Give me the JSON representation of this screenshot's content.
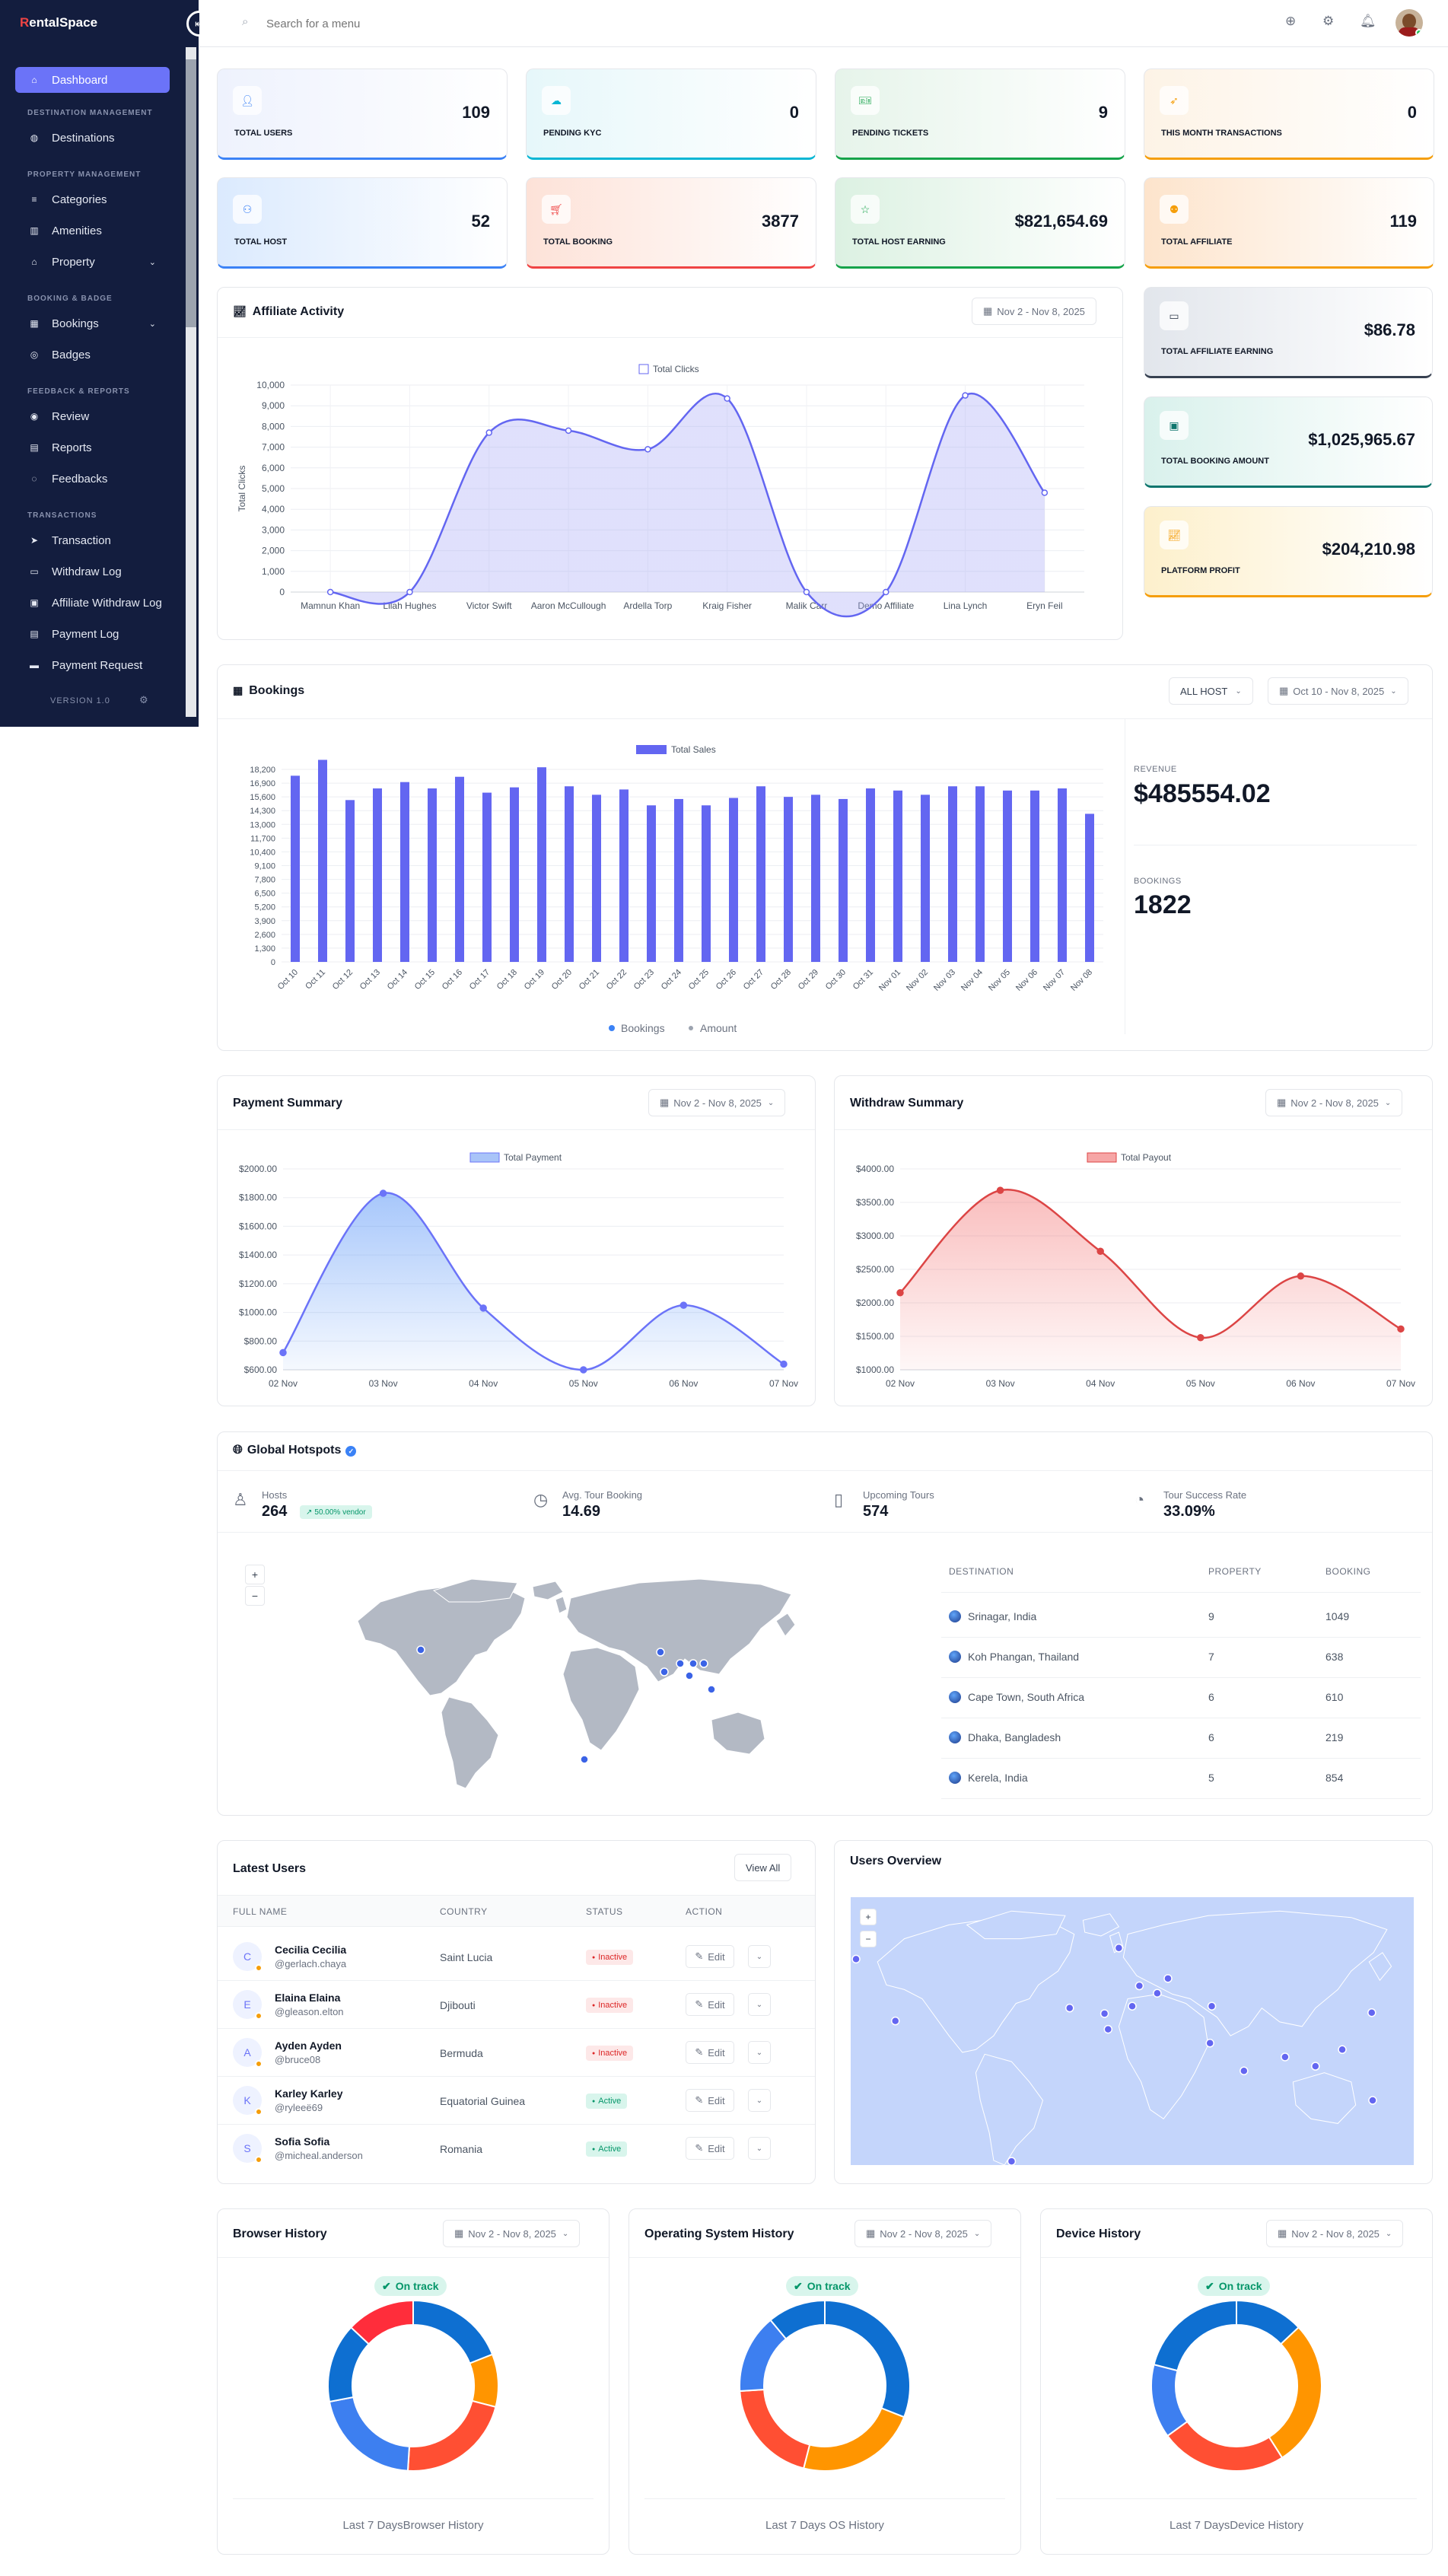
{
  "app": {
    "logo_r": "R",
    "logo_rest": "entalSpace",
    "version": "VERSION 1.0"
  },
  "colors": {
    "accent": "#6b73f8",
    "sidebar": "#131d3e",
    "danger": "#ef4444",
    "success": "#10b981"
  },
  "sidebar": {
    "active": "Dashboard",
    "sections": [
      {
        "title": "DESTINATION MANAGEMENT",
        "items": [
          {
            "label": "Destinations",
            "icon": "globe-icon"
          }
        ]
      },
      {
        "title": "PROPERTY MANAGEMENT",
        "items": [
          {
            "label": "Categories",
            "icon": "list-icon"
          },
          {
            "label": "Amenities",
            "icon": "building-icon"
          },
          {
            "label": "Property",
            "icon": "home-icon",
            "chevron": true
          }
        ]
      },
      {
        "title": "BOOKING & BADGE",
        "items": [
          {
            "label": "Bookings",
            "icon": "calendar-icon",
            "chevron": true
          },
          {
            "label": "Badges",
            "icon": "badge-icon"
          }
        ]
      },
      {
        "title": "FEEDBACK & REPORTS",
        "items": [
          {
            "label": "Review",
            "icon": "review-icon"
          },
          {
            "label": "Reports",
            "icon": "report-icon"
          },
          {
            "label": "Feedbacks",
            "icon": "chat-icon"
          }
        ]
      },
      {
        "title": "TRANSACTIONS",
        "items": [
          {
            "label": "Transaction",
            "icon": "send-icon"
          },
          {
            "label": "Withdraw Log",
            "icon": "wallet-icon"
          },
          {
            "label": "Affiliate Withdraw Log",
            "icon": "ledger-icon"
          },
          {
            "label": "Payment Log",
            "icon": "receipt-icon"
          },
          {
            "label": "Payment Request",
            "icon": "money-icon"
          }
        ]
      }
    ]
  },
  "search": {
    "placeholder": "Search for a menu"
  },
  "stats": [
    {
      "label": "TOTAL USERS",
      "value": "109",
      "icon": "user-icon",
      "bg": "#eef2fd",
      "line": "#3b82f6"
    },
    {
      "label": "PENDING KYC",
      "value": "0",
      "icon": "cloud-icon",
      "bg": "#e6f7fa",
      "line": "#06b6d4"
    },
    {
      "label": "PENDING TICKETS",
      "value": "9",
      "icon": "ticket-icon",
      "bg": "#e6f4ea",
      "line": "#16a34a"
    },
    {
      "label": "THIS MONTH TRANSACTIONS",
      "value": "0",
      "icon": "plane-icon",
      "bg": "#fdf3e6",
      "line": "#f59e0b"
    },
    {
      "label": "TOTAL HOST",
      "value": "52",
      "icon": "host-icon",
      "bg": "#dbeafe",
      "line": "#3b82f6"
    },
    {
      "label": "TOTAL BOOKING",
      "value": "3877",
      "icon": "cart-icon",
      "bg": "#fde2d8",
      "line": "#ef4444"
    },
    {
      "label": "TOTAL HOST EARNING",
      "value": "$821,654.69",
      "icon": "star-icon",
      "bg": "#dcf1e2",
      "line": "#16a34a"
    },
    {
      "label": "TOTAL AFFILIATE",
      "value": "119",
      "icon": "group-icon",
      "bg": "#fde4cc",
      "line": "#f59e0b"
    }
  ],
  "side_stats": [
    {
      "label": "TOTAL AFFILIATE EARNING",
      "value": "$86.78",
      "icon": "card-icon",
      "bg": "#e2e6ec",
      "line": "#374151"
    },
    {
      "label": "TOTAL BOOKING AMOUNT",
      "value": "$1,025,965.67",
      "icon": "image-icon",
      "bg": "#d9f1ec",
      "line": "#0f766e"
    },
    {
      "label": "PLATFORM PROFIT",
      "value": "$204,210.98",
      "icon": "chart-icon",
      "bg": "#fdf0cc",
      "line": "#f59e0b"
    }
  ],
  "affiliate": {
    "title": "Affiliate Activity",
    "date": "Nov 2 - Nov 8, 2025",
    "legend": "Total Clicks",
    "ylabel": "Total Clicks",
    "chart_data": {
      "type": "area",
      "categories": [
        "Mamnun Khan",
        "Lilah Hughes",
        "Victor Swift",
        "Aaron McCullough",
        "Ardella Torp",
        "Kraig Fisher",
        "Malik Carr",
        "Demo Affiliate",
        "Lina Lynch",
        "Eryn Feil"
      ],
      "series": [
        {
          "name": "Total Clicks",
          "values": [
            0,
            0,
            7700,
            7800,
            6900,
            9350,
            0,
            0,
            9500,
            4800
          ]
        }
      ],
      "yticks": [
        "0",
        "1,000",
        "2,000",
        "3,000",
        "4,000",
        "5,000",
        "6,000",
        "7,000",
        "8,000",
        "9,000",
        "10,000"
      ],
      "ylim": [
        0,
        10000
      ]
    }
  },
  "bookings": {
    "title": "Bookings",
    "host_filter": "ALL HOST",
    "date": "Oct 10 - Nov 8, 2025",
    "legend": "Total Sales",
    "revenue_label": "REVENUE",
    "revenue": "$485554.02",
    "bookings_label": "BOOKINGS",
    "bookings": "1822",
    "legend_bottom": [
      "Bookings",
      "Amount"
    ],
    "chart_data": {
      "type": "bar",
      "categories": [
        "Oct 10",
        "Oct 11",
        "Oct 12",
        "Oct 13",
        "Oct 14",
        "Oct 15",
        "Oct 16",
        "Oct 17",
        "Oct 18",
        "Oct 19",
        "Oct 20",
        "Oct 21",
        "Oct 22",
        "Oct 23",
        "Oct 24",
        "Oct 25",
        "Oct 26",
        "Oct 27",
        "Oct 28",
        "Oct 29",
        "Oct 30",
        "Oct 31",
        "Nov 01",
        "Nov 02",
        "Nov 03",
        "Nov 04",
        "Nov 05",
        "Nov 06",
        "Nov 07",
        "Nov 08"
      ],
      "series": [
        {
          "name": "Total Sales",
          "values": [
            17600,
            19100,
            15300,
            16400,
            17000,
            16400,
            17500,
            16000,
            16500,
            18400,
            16600,
            15800,
            16300,
            14800,
            15400,
            14800,
            15500,
            16600,
            15600,
            15800,
            15400,
            16400,
            16200,
            15800,
            16600,
            16600,
            16200,
            16200,
            16400,
            14000
          ]
        }
      ],
      "yticks": [
        "0",
        "1,300",
        "2,600",
        "3,900",
        "5,200",
        "6,500",
        "7,800",
        "9,100",
        "10,400",
        "11,700",
        "13,000",
        "14,300",
        "15,600",
        "16,900",
        "18,200"
      ],
      "ylim": [
        0,
        18200
      ]
    }
  },
  "payment": {
    "title": "Payment Summary",
    "date": "Nov 2 - Nov 8, 2025",
    "legend": "Total Payment",
    "chart_data": {
      "type": "area",
      "categories": [
        "02 Nov",
        "03 Nov",
        "04 Nov",
        "05 Nov",
        "06 Nov",
        "07 Nov"
      ],
      "series": [
        {
          "name": "Total Payment",
          "values": [
            720,
            1830,
            1030,
            600,
            1050,
            640
          ]
        }
      ],
      "yticks": [
        "$600.00",
        "$800.00",
        "$1000.00",
        "$1200.00",
        "$1400.00",
        "$1600.00",
        "$1800.00",
        "$2000.00"
      ],
      "ylim": [
        600,
        2000
      ]
    }
  },
  "withdraw": {
    "title": "Withdraw Summary",
    "date": "Nov 2 - Nov 8, 2025",
    "legend": "Total Payout",
    "chart_data": {
      "type": "area",
      "categories": [
        "02 Nov",
        "03 Nov",
        "04 Nov",
        "05 Nov",
        "06 Nov",
        "07 Nov"
      ],
      "series": [
        {
          "name": "Total Payout",
          "values": [
            2150,
            3680,
            2770,
            1480,
            2400,
            1610
          ]
        }
      ],
      "yticks": [
        "$1000.00",
        "$1500.00",
        "$2000.00",
        "$2500.00",
        "$3000.00",
        "$3500.00",
        "$4000.00"
      ],
      "ylim": [
        1000,
        4000
      ]
    }
  },
  "hotspots": {
    "title": "Global Hotspots",
    "kpis": [
      {
        "label": "Hosts",
        "value": "264",
        "badge": "50.00% vendor",
        "icon": "person-icon"
      },
      {
        "label": "Avg. Tour Booking",
        "value": "14.69",
        "icon": "clock-icon"
      },
      {
        "label": "Upcoming Tours",
        "value": "574",
        "icon": "tablet-icon"
      },
      {
        "label": "Tour Success Rate",
        "value": "33.09%",
        "icon": "pie-icon"
      }
    ],
    "table": {
      "headers": [
        "DESTINATION",
        "PROPERTY",
        "BOOKING"
      ],
      "rows": [
        [
          "Srinagar, India",
          "9",
          "1049"
        ],
        [
          "Koh Phangan, Thailand",
          "7",
          "638"
        ],
        [
          "Cape Town, South Africa",
          "6",
          "610"
        ],
        [
          "Dhaka, Bangladesh",
          "6",
          "219"
        ],
        [
          "Kerela, India",
          "5",
          "854"
        ]
      ]
    }
  },
  "latest_users": {
    "title": "Latest Users",
    "view_all": "View All",
    "headers": [
      "FULL NAME",
      "COUNTRY",
      "STATUS",
      "ACTION"
    ],
    "edit": "Edit",
    "rows": [
      {
        "initial": "C",
        "name": "Cecilia Cecilia",
        "handle": "@gerlach.chaya",
        "country": "Saint Lucia",
        "status": "Inactive"
      },
      {
        "initial": "E",
        "name": "Elaina Elaina",
        "handle": "@gleason.elton",
        "country": "Djibouti",
        "status": "Inactive"
      },
      {
        "initial": "A",
        "name": "Ayden Ayden",
        "handle": "@bruce08",
        "country": "Bermuda",
        "status": "Inactive"
      },
      {
        "initial": "K",
        "name": "Karley Karley",
        "handle": "@ryleeё69",
        "country": "Equatorial Guinea",
        "status": "Active"
      },
      {
        "initial": "S",
        "name": "Sofia Sofia",
        "handle": "@micheal.anderson",
        "country": "Romania",
        "status": "Active"
      }
    ]
  },
  "users_overview": {
    "title": "Users Overview"
  },
  "history": [
    {
      "title": "Browser History",
      "date": "Nov 2 - Nov 8, 2025",
      "badge": "On track",
      "footer": "Last 7 DaysBrowser History",
      "chart_data": {
        "type": "pie",
        "values": [
          19,
          10,
          22,
          21,
          15,
          13
        ],
        "colors": [
          "#0e6fd1",
          "#ff9500",
          "#ff4f33",
          "#3d7ff0",
          "#0e6fd1",
          "#ff2d3b"
        ]
      }
    },
    {
      "title": "Operating System History",
      "date": "Nov 2 - Nov 8, 2025",
      "badge": "On track",
      "footer": "Last 7 Days OS History",
      "chart_data": {
        "type": "pie",
        "values": [
          31,
          23,
          20,
          15,
          11
        ],
        "colors": [
          "#0e6fd1",
          "#ff9500",
          "#ff4f33",
          "#3d7ff0",
          "#0e6fd1"
        ]
      }
    },
    {
      "title": "Device History",
      "date": "Nov 2 - Nov 8, 2025",
      "badge": "On track",
      "footer": "Last 7 DaysDevice History",
      "chart_data": {
        "type": "pie",
        "values": [
          13,
          28,
          24,
          14,
          21
        ],
        "colors": [
          "#0e6fd1",
          "#ff9500",
          "#ff4f33",
          "#3d7ff0",
          "#0e6fd1"
        ]
      }
    }
  ]
}
